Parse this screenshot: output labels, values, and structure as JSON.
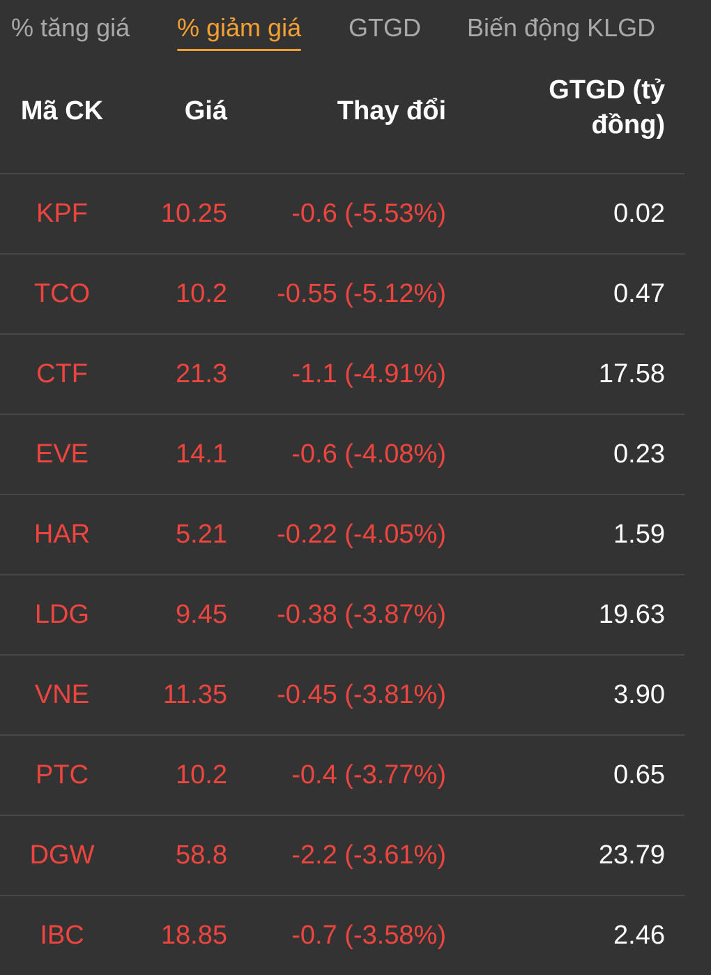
{
  "tabs": [
    {
      "label": "% tăng giá",
      "active": false
    },
    {
      "label": "% giảm giá",
      "active": true
    },
    {
      "label": "GTGD",
      "active": false
    },
    {
      "label": "Biến động KLGD",
      "active": false
    }
  ],
  "table": {
    "headers": {
      "code": "Mã CK",
      "price": "Giá",
      "change": "Thay đổi",
      "value_line1": "GTGD (tỷ",
      "value_line2": "đồng)"
    },
    "rows": [
      {
        "code": "KPF",
        "price": "10.25",
        "change": "-0.6 (-5.53%)",
        "value": "0.02"
      },
      {
        "code": "TCO",
        "price": "10.2",
        "change": "-0.55 (-5.12%)",
        "value": "0.47"
      },
      {
        "code": "CTF",
        "price": "21.3",
        "change": "-1.1 (-4.91%)",
        "value": "17.58"
      },
      {
        "code": "EVE",
        "price": "14.1",
        "change": "-0.6 (-4.08%)",
        "value": "0.23"
      },
      {
        "code": "HAR",
        "price": "5.21",
        "change": "-0.22 (-4.05%)",
        "value": "1.59"
      },
      {
        "code": "LDG",
        "price": "9.45",
        "change": "-0.38 (-3.87%)",
        "value": "19.63"
      },
      {
        "code": "VNE",
        "price": "11.35",
        "change": "-0.45 (-3.81%)",
        "value": "3.90"
      },
      {
        "code": "PTC",
        "price": "10.2",
        "change": "-0.4 (-3.77%)",
        "value": "0.65"
      },
      {
        "code": "DGW",
        "price": "58.8",
        "change": "-2.2 (-3.61%)",
        "value": "23.79"
      },
      {
        "code": "IBC",
        "price": "18.85",
        "change": "-0.7 (-3.58%)",
        "value": "2.46"
      }
    ]
  },
  "colors": {
    "background": "#333333",
    "active_tab": "#f5a032",
    "inactive_tab": "#a9a9a9",
    "decline": "#f0453f",
    "text": "#ffffff",
    "divider": "#474747"
  }
}
